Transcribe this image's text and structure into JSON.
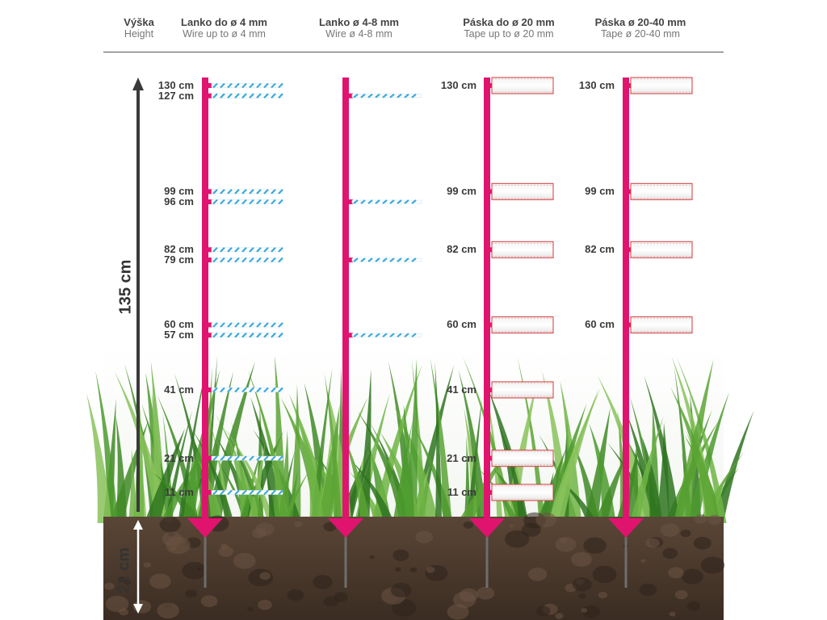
{
  "header": {
    "columns": [
      {
        "title": "Výška",
        "subtitle": "Height"
      },
      {
        "title": "Lanko do ø 4 mm",
        "subtitle": "Wire up to ø 4 mm"
      },
      {
        "title": "Lanko ø 4-8 mm",
        "subtitle": "Wire ø 4-8 mm"
      },
      {
        "title": "Páska do ø 20 mm",
        "subtitle": "Tape up to ø 20 mm"
      },
      {
        "title": "Páska ø 20-40 mm",
        "subtitle": "Tape ø 20-40 mm"
      }
    ]
  },
  "dimensions": {
    "above_ground": "135 cm",
    "below_ground": "21 cm"
  },
  "posts": [
    {
      "type": "wire",
      "labels": [
        "130 cm",
        "127 cm",
        "99 cm",
        "96 cm",
        "82 cm",
        "79 cm",
        "60 cm",
        "57 cm",
        "41 cm",
        "21 cm",
        "11 cm"
      ],
      "heights": [
        130,
        127,
        99,
        96,
        82,
        79,
        60,
        57,
        41,
        21,
        11
      ]
    },
    {
      "type": "thick-wire",
      "labels": [],
      "heights": [
        127,
        96,
        79,
        57
      ]
    },
    {
      "type": "tape-narrow",
      "labels": [
        "130 cm",
        "99 cm",
        "82 cm",
        "60 cm",
        "41 cm",
        "21 cm",
        "11 cm"
      ],
      "heights": [
        130,
        99,
        82,
        60,
        41,
        21,
        11
      ]
    },
    {
      "type": "tape-wide",
      "labels": [
        "130 cm",
        "99 cm",
        "82 cm",
        "60 cm"
      ],
      "heights": [
        130,
        99,
        82,
        60
      ]
    }
  ],
  "colors": {
    "post": "#e0146e",
    "soil": "#4a3a30",
    "grass": "#4c8f2c",
    "wire_blue": "#3fa9d8",
    "tape_border": "#d33a3a",
    "arrow": "#3a3a3a"
  }
}
